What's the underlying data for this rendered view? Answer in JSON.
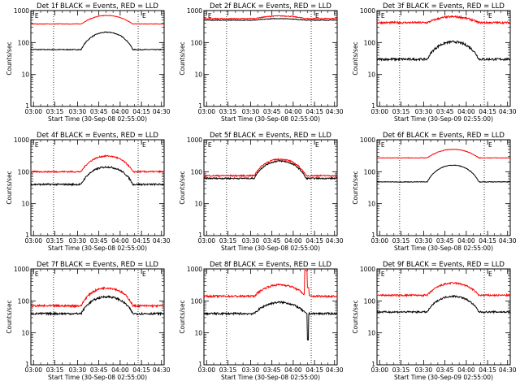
{
  "x_ticks": [
    "03:00",
    "03:15",
    "03:30",
    "03:45",
    "04:00",
    "04:15",
    "04:30"
  ],
  "colors": {
    "events": "#000000",
    "lld": "#ff0000",
    "axes": "#000000"
  },
  "chart_data": [
    {
      "type": "line",
      "title": "Det 1f BLACK = Events, RED = LLD",
      "xlabel": "Start Time (30-Sep-08 02:55:00)",
      "ylabel": "Counts/sec",
      "y_scale": "log",
      "ylim": [
        1,
        1000
      ],
      "y_ticks": [
        "1",
        "10",
        "100",
        "1000"
      ],
      "marker": "E",
      "series": [
        {
          "name": "Events",
          "color": "#000000",
          "base": 60,
          "amp": 210,
          "noise": 0.03
        },
        {
          "name": "LLD",
          "color": "#ff0000",
          "base": 380,
          "amp": 700,
          "noise": 0.02
        }
      ]
    },
    {
      "type": "line",
      "title": "Det 2f BLACK = Events, RED = LLD",
      "xlabel": "Start Time (30-Sep-08 02:55:00)",
      "ylabel": "Counts/sec",
      "y_scale": "log",
      "ylim": [
        1,
        1000
      ],
      "y_ticks": [
        "1",
        "10",
        "100",
        "1000"
      ],
      "marker": "E",
      "series": [
        {
          "name": "Events",
          "color": "#000000",
          "base": 500,
          "amp": 560,
          "noise": 0.02
        },
        {
          "name": "LLD",
          "color": "#ff0000",
          "base": 560,
          "amp": 680,
          "noise": 0.03
        }
      ]
    },
    {
      "type": "line",
      "title": "Det 3f BLACK = Events, RED = LLD",
      "xlabel": "Start Time (30-Sep-09 02:55:00)",
      "ylabel": "Counts/sec",
      "y_scale": "log",
      "ylim": [
        1,
        1000
      ],
      "y_ticks": [
        "1",
        "10",
        "100",
        "1000"
      ],
      "marker": "E",
      "series": [
        {
          "name": "Events",
          "color": "#000000",
          "base": 30,
          "amp": 105,
          "noise": 0.08
        },
        {
          "name": "LLD",
          "color": "#ff0000",
          "base": 420,
          "amp": 640,
          "noise": 0.07
        }
      ]
    },
    {
      "type": "line",
      "title": "Det 4f BLACK = Events, RED = LLD",
      "xlabel": "Start Time (30-Sep-08 02:55:00)",
      "ylabel": "Counts/sec",
      "y_scale": "log",
      "ylim": [
        1,
        1000
      ],
      "y_ticks": [
        "1",
        "10",
        "100",
        "1000"
      ],
      "marker": "E",
      "series": [
        {
          "name": "Events",
          "color": "#000000",
          "base": 40,
          "amp": 140,
          "noise": 0.06
        },
        {
          "name": "LLD",
          "color": "#ff0000",
          "base": 100,
          "amp": 310,
          "noise": 0.05
        }
      ]
    },
    {
      "type": "line",
      "title": "Det 5f BLACK = Events, RED = LLD",
      "xlabel": "Start Time (30-Sep-08 02:55:00)",
      "ylabel": "Counts/sec",
      "y_scale": "log",
      "ylim": [
        1,
        1000
      ],
      "y_ticks": [
        "1",
        "10",
        "100",
        "1000"
      ],
      "marker": "E",
      "series": [
        {
          "name": "Events",
          "color": "#000000",
          "base": 62,
          "amp": 215,
          "noise": 0.05
        },
        {
          "name": "LLD",
          "color": "#ff0000",
          "base": 75,
          "amp": 245,
          "noise": 0.05
        }
      ]
    },
    {
      "type": "line",
      "title": "Det 6f BLACK = Events, RED = LLD",
      "xlabel": "Start Time (30-Sep-08 02:55:00)",
      "ylabel": "Counts/sec",
      "y_scale": "log",
      "ylim": [
        1,
        1000
      ],
      "y_ticks": [
        "1",
        "10",
        "100",
        "1000"
      ],
      "marker": "E",
      "series": [
        {
          "name": "Events",
          "color": "#000000",
          "base": 48,
          "amp": 160,
          "noise": 0.02
        },
        {
          "name": "LLD",
          "color": "#ff0000",
          "base": 270,
          "amp": 500,
          "noise": 0.02
        }
      ]
    },
    {
      "type": "line",
      "title": "Det 7f BLACK = Events, RED = LLD",
      "xlabel": "Start Time (30-Sep-08 02:55:00)",
      "ylabel": "Counts/sec",
      "y_scale": "log",
      "ylim": [
        1,
        1000
      ],
      "y_ticks": [
        "1",
        "10",
        "100",
        "1000"
      ],
      "marker": "E",
      "series": [
        {
          "name": "Events",
          "color": "#000000",
          "base": 40,
          "amp": 135,
          "noise": 0.07
        },
        {
          "name": "LLD",
          "color": "#ff0000",
          "base": 70,
          "amp": 255,
          "noise": 0.07
        }
      ]
    },
    {
      "type": "line",
      "title": "Det 8f BLACK = Events, RED = LLD",
      "xlabel": "Start Time (30-Sep-08 02:55:00)",
      "ylabel": "Counts/sec",
      "y_scale": "log",
      "ylim": [
        1,
        1000
      ],
      "y_ticks": [
        "1",
        "10",
        "100",
        "1000"
      ],
      "marker": "",
      "series": [
        {
          "name": "Events",
          "color": "#000000",
          "base": 40,
          "amp": 90,
          "noise": 0.07
        },
        {
          "name": "LLD",
          "color": "#ff0000",
          "base": 140,
          "amp": 320,
          "noise": 0.07
        }
      ],
      "annotations": [
        "spike near 04:10: LLD rises to the top of the axis, Events dips below 10"
      ]
    },
    {
      "type": "line",
      "title": "Det 9f BLACK = Events, RED = LLD",
      "xlabel": "Start Time (30-Sep-09 02:55:00)",
      "ylabel": "Counts/sec",
      "y_scale": "log",
      "ylim": [
        1,
        1000
      ],
      "y_ticks": [
        "1",
        "10",
        "100",
        "1000"
      ],
      "marker": "E",
      "series": [
        {
          "name": "Events",
          "color": "#000000",
          "base": 45,
          "amp": 140,
          "noise": 0.06
        },
        {
          "name": "LLD",
          "color": "#ff0000",
          "base": 150,
          "amp": 360,
          "noise": 0.06
        }
      ]
    }
  ]
}
